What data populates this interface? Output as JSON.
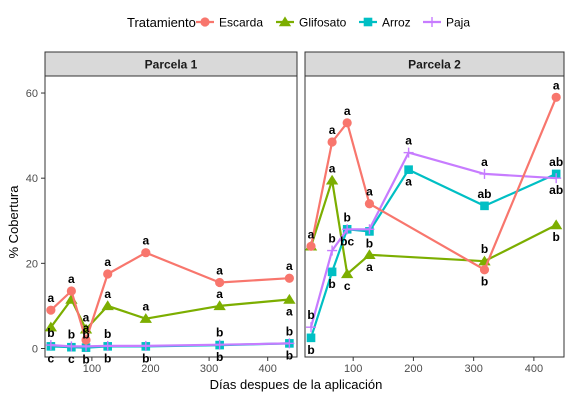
{
  "chart_data": {
    "type": "line",
    "xlabel": "Días despues de la aplicación",
    "ylabel": "% Cobertura",
    "xlim": [
      20,
      450
    ],
    "ylim": [
      -2,
      64
    ],
    "x_ticks": [
      100,
      200,
      300,
      400
    ],
    "y_ticks": [
      0,
      20,
      40,
      60
    ],
    "grid": false,
    "legend": {
      "title": "Tratamiento",
      "position": "top",
      "items": [
        "Escarda",
        "Glifosato",
        "Arroz",
        "Paja"
      ]
    },
    "colors": {
      "Escarda": "#F8766D",
      "Glifosato": "#7CAE00",
      "Arroz": "#00BFC4",
      "Paja": "#C77CFF"
    },
    "panels": [
      {
        "name": "Parcela 1",
        "series": [
          {
            "name": "Escarda",
            "points": [
              [
                30,
                9
              ],
              [
                65,
                13.5
              ],
              [
                90,
                2
              ],
              [
                127,
                17.5
              ],
              [
                192,
                22.5
              ],
              [
                318,
                15.5
              ],
              [
                437,
                16.5
              ]
            ],
            "labels": [
              {
                "x": 30,
                "y": 9,
                "text": "a",
                "pos": "above"
              },
              {
                "x": 65,
                "y": 13.5,
                "text": "a",
                "pos": "above"
              },
              {
                "x": 90,
                "y": 2,
                "text": "a",
                "pos": "above"
              },
              {
                "x": 127,
                "y": 17.5,
                "text": "a",
                "pos": "above"
              },
              {
                "x": 192,
                "y": 22.5,
                "text": "a",
                "pos": "above"
              },
              {
                "x": 318,
                "y": 15.5,
                "text": "a",
                "pos": "above"
              },
              {
                "x": 437,
                "y": 16.5,
                "text": "a",
                "pos": "above"
              }
            ]
          },
          {
            "name": "Glifosato",
            "points": [
              [
                30,
                5
              ],
              [
                65,
                11.5
              ],
              [
                90,
                4.5
              ],
              [
                127,
                10
              ],
              [
                192,
                7
              ],
              [
                318,
                10
              ],
              [
                437,
                11.5
              ]
            ],
            "labels": [
              {
                "x": 90,
                "y": 4.5,
                "text": "a",
                "pos": "above"
              },
              {
                "x": 127,
                "y": 10,
                "text": "a",
                "pos": "above"
              },
              {
                "x": 192,
                "y": 7,
                "text": "a",
                "pos": "above"
              },
              {
                "x": 318,
                "y": 10,
                "text": "a",
                "pos": "above"
              },
              {
                "x": 437,
                "y": 11.5,
                "text": "a",
                "pos": "below"
              }
            ]
          },
          {
            "name": "Arroz",
            "points": [
              [
                30,
                0.5
              ],
              [
                65,
                0.3
              ],
              [
                90,
                0.2
              ],
              [
                127,
                0.5
              ],
              [
                192,
                0.5
              ],
              [
                318,
                0.8
              ],
              [
                437,
                1.2
              ]
            ],
            "labels": [
              {
                "x": 30,
                "y": 0.5,
                "text": "c",
                "pos": "below"
              },
              {
                "x": 65,
                "y": 0.3,
                "text": "c",
                "pos": "below"
              },
              {
                "x": 90,
                "y": 0.2,
                "text": "b",
                "pos": "below"
              },
              {
                "x": 127,
                "y": 0.5,
                "text": "b",
                "pos": "below"
              },
              {
                "x": 192,
                "y": 0.5,
                "text": "b",
                "pos": "below"
              },
              {
                "x": 318,
                "y": 0.8,
                "text": "b",
                "pos": "below"
              },
              {
                "x": 437,
                "y": 1.2,
                "text": "b",
                "pos": "below"
              }
            ]
          },
          {
            "name": "Paja",
            "points": [
              [
                30,
                0.8
              ],
              [
                65,
                0.5
              ],
              [
                90,
                0.5
              ],
              [
                127,
                0.6
              ],
              [
                192,
                0.6
              ],
              [
                318,
                0.9
              ],
              [
                437,
                1.2
              ]
            ],
            "labels": [
              {
                "x": 30,
                "y": 0.8,
                "text": "b",
                "pos": "above"
              },
              {
                "x": 65,
                "y": 0.5,
                "text": "b",
                "pos": "above"
              },
              {
                "x": 90,
                "y": 0.5,
                "text": "b",
                "pos": "above"
              },
              {
                "x": 127,
                "y": 0.6,
                "text": "b",
                "pos": "above"
              },
              {
                "x": 318,
                "y": 0.9,
                "text": "b",
                "pos": "above"
              },
              {
                "x": 437,
                "y": 1.2,
                "text": "b",
                "pos": "above"
              }
            ]
          }
        ]
      },
      {
        "name": "Parcela 2",
        "series": [
          {
            "name": "Escarda",
            "points": [
              [
                30,
                24
              ],
              [
                65,
                48.5
              ],
              [
                90,
                53
              ],
              [
                127,
                34
              ],
              [
                318,
                18.5
              ],
              [
                437,
                59
              ]
            ],
            "labels": [
              {
                "x": 30,
                "y": 24,
                "text": "a",
                "pos": "above"
              },
              {
                "x": 65,
                "y": 48.5,
                "text": "a",
                "pos": "above"
              },
              {
                "x": 90,
                "y": 53,
                "text": "a",
                "pos": "above"
              },
              {
                "x": 127,
                "y": 34,
                "text": "a",
                "pos": "above"
              },
              {
                "x": 318,
                "y": 18.5,
                "text": "b",
                "pos": "below"
              },
              {
                "x": 437,
                "y": 59,
                "text": "a",
                "pos": "above"
              }
            ]
          },
          {
            "name": "Glifosato",
            "points": [
              [
                30,
                24
              ],
              [
                65,
                39.5
              ],
              [
                90,
                17.5
              ],
              [
                127,
                22
              ],
              [
                318,
                20.5
              ],
              [
                437,
                29
              ]
            ],
            "labels": [
              {
                "x": 65,
                "y": 39.5,
                "text": "a",
                "pos": "above"
              },
              {
                "x": 90,
                "y": 17.5,
                "text": "c",
                "pos": "below"
              },
              {
                "x": 127,
                "y": 22,
                "text": "a",
                "pos": "below"
              },
              {
                "x": 318,
                "y": 20.5,
                "text": "b",
                "pos": "above"
              },
              {
                "x": 437,
                "y": 29,
                "text": "b",
                "pos": "below"
              }
            ]
          },
          {
            "name": "Arroz",
            "points": [
              [
                30,
                2.5
              ],
              [
                65,
                18
              ],
              [
                90,
                28
              ],
              [
                127,
                27.5
              ],
              [
                192,
                42
              ],
              [
                318,
                33.5
              ],
              [
                437,
                41
              ]
            ],
            "labels": [
              {
                "x": 30,
                "y": 2.5,
                "text": "b",
                "pos": "below"
              },
              {
                "x": 65,
                "y": 18,
                "text": "b",
                "pos": "below"
              },
              {
                "x": 90,
                "y": 28,
                "text": "b",
                "pos": "above"
              },
              {
                "x": 127,
                "y": 27.5,
                "text": "b",
                "pos": "below"
              },
              {
                "x": 192,
                "y": 42,
                "text": "a",
                "pos": "below"
              },
              {
                "x": 318,
                "y": 33.5,
                "text": "ab",
                "pos": "above"
              },
              {
                "x": 437,
                "y": 41,
                "text": "ab",
                "pos": "above"
              }
            ]
          },
          {
            "name": "Paja",
            "points": [
              [
                30,
                5
              ],
              [
                65,
                23
              ],
              [
                90,
                28
              ],
              [
                127,
                28
              ],
              [
                192,
                46
              ],
              [
                318,
                41
              ],
              [
                437,
                40
              ]
            ],
            "labels": [
              {
                "x": 30,
                "y": 5,
                "text": "b",
                "pos": "above"
              },
              {
                "x": 65,
                "y": 23,
                "text": "b",
                "pos": "above"
              },
              {
                "x": 90,
                "y": 28,
                "text": "bc",
                "pos": "below"
              },
              {
                "x": 192,
                "y": 46,
                "text": "a",
                "pos": "above"
              },
              {
                "x": 318,
                "y": 41,
                "text": "a",
                "pos": "above"
              },
              {
                "x": 437,
                "y": 40,
                "text": "ab",
                "pos": "below"
              }
            ]
          }
        ]
      }
    ]
  }
}
